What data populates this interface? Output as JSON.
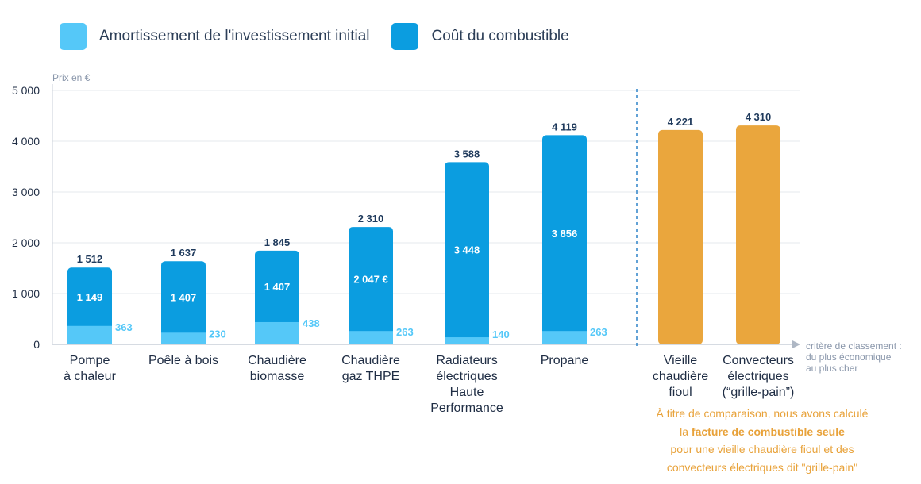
{
  "legend": {
    "items": [
      {
        "label": "Amortissement de l'investissement initial",
        "color": "#55c8f8"
      },
      {
        "label": "Coût du combustible",
        "color": "#0b9de0"
      }
    ]
  },
  "colors": {
    "investment": "#55c8f8",
    "fuel": "#0b9de0",
    "comparison": "#eaa63d",
    "axis_text": "#1f2d44",
    "total_text": "#1f3a5c",
    "inner_text": "#ffffff",
    "light_text": "#55c8f8",
    "muted_text": "#8a97ab",
    "grid": "#e6e9ee",
    "separator": "#2f84c9"
  },
  "chart_data": {
    "type": "bar",
    "stacked": true,
    "y_unit_label": "Prix en €",
    "ylim": [
      0,
      5000
    ],
    "y_ticks": [
      {
        "value": 0,
        "label": "0"
      },
      {
        "value": 1000,
        "label": "1 000"
      },
      {
        "value": 2000,
        "label": "2 000"
      },
      {
        "value": 3000,
        "label": "3 000"
      },
      {
        "value": 4000,
        "label": "4 000"
      },
      {
        "value": 5000,
        "label": "5 000"
      }
    ],
    "x_axis_note": [
      "critère de classement :",
      "du plus économique",
      "au plus cher"
    ],
    "categories": [
      {
        "label": [
          "Pompe",
          "à chaleur"
        ],
        "total": 1512,
        "total_label": "1 512",
        "investment": 363,
        "investment_label": "363",
        "fuel_label": "1 149",
        "group": "main"
      },
      {
        "label": [
          "Poêle à bois"
        ],
        "total": 1637,
        "total_label": "1 637",
        "investment": 230,
        "investment_label": "230",
        "fuel_label": "1 407",
        "group": "main"
      },
      {
        "label": [
          "Chaudière",
          "biomasse"
        ],
        "total": 1845,
        "total_label": "1 845",
        "investment": 438,
        "investment_label": "438",
        "fuel_label": "1 407",
        "group": "main"
      },
      {
        "label": [
          "Chaudière",
          "gaz THPE"
        ],
        "total": 2310,
        "total_label": "2 310",
        "investment": 263,
        "investment_label": "263",
        "fuel_label": "2 047 €",
        "group": "main"
      },
      {
        "label": [
          "Radiateurs",
          "électriques",
          "Haute",
          "Performance"
        ],
        "total": 3588,
        "total_label": "3 588",
        "investment": 140,
        "investment_label": "140",
        "fuel_label": "3 448",
        "group": "main"
      },
      {
        "label": [
          "Propane"
        ],
        "total": 4119,
        "total_label": "4 119",
        "investment": 263,
        "investment_label": "263",
        "fuel_label": "3 856",
        "group": "main"
      },
      {
        "label": [
          "Vieille",
          "chaudière",
          "fioul"
        ],
        "total": 4221,
        "total_label": "4 221",
        "group": "comparison"
      },
      {
        "label": [
          "Convecteurs",
          "électriques",
          "(“grille-pain”)"
        ],
        "total": 4310,
        "total_label": "4 310",
        "group": "comparison"
      }
    ]
  },
  "note": {
    "line1": "À titre de comparaison, nous avons calculé",
    "line2_pre": "la ",
    "line2_bold": "facture de combustible seule",
    "line3": "pour une vieille chaudière fioul et des",
    "line4": "convecteurs électriques dit \"grille-pain\""
  }
}
